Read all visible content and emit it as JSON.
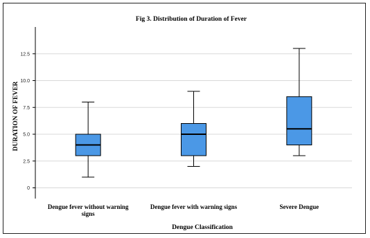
{
  "chart_data": {
    "type": "box",
    "title": "Fig 3. Distribution of Duration of Fever",
    "xlabel": "Dengue Classification",
    "ylabel": "DURATION OF FEVER",
    "ylim": [
      -1,
      15
    ],
    "yticks": [
      "0",
      "2.5",
      "5.0",
      "7.5",
      "10.0",
      "12.5"
    ],
    "grid": "horizontal",
    "box_color": "#4b98e6",
    "categories": [
      [
        "Dengue fever without warning",
        "signs"
      ],
      [
        "Dengue fever with warning signs"
      ],
      [
        "Severe Dengue"
      ]
    ],
    "boxes": [
      {
        "min": 1,
        "q1": 3,
        "median": 4,
        "q3": 5,
        "max": 8
      },
      {
        "min": 2,
        "q1": 3,
        "median": 5,
        "q3": 6,
        "max": 9
      },
      {
        "min": 3,
        "q1": 4,
        "median": 5.5,
        "q3": 8.5,
        "max": 13
      }
    ]
  }
}
